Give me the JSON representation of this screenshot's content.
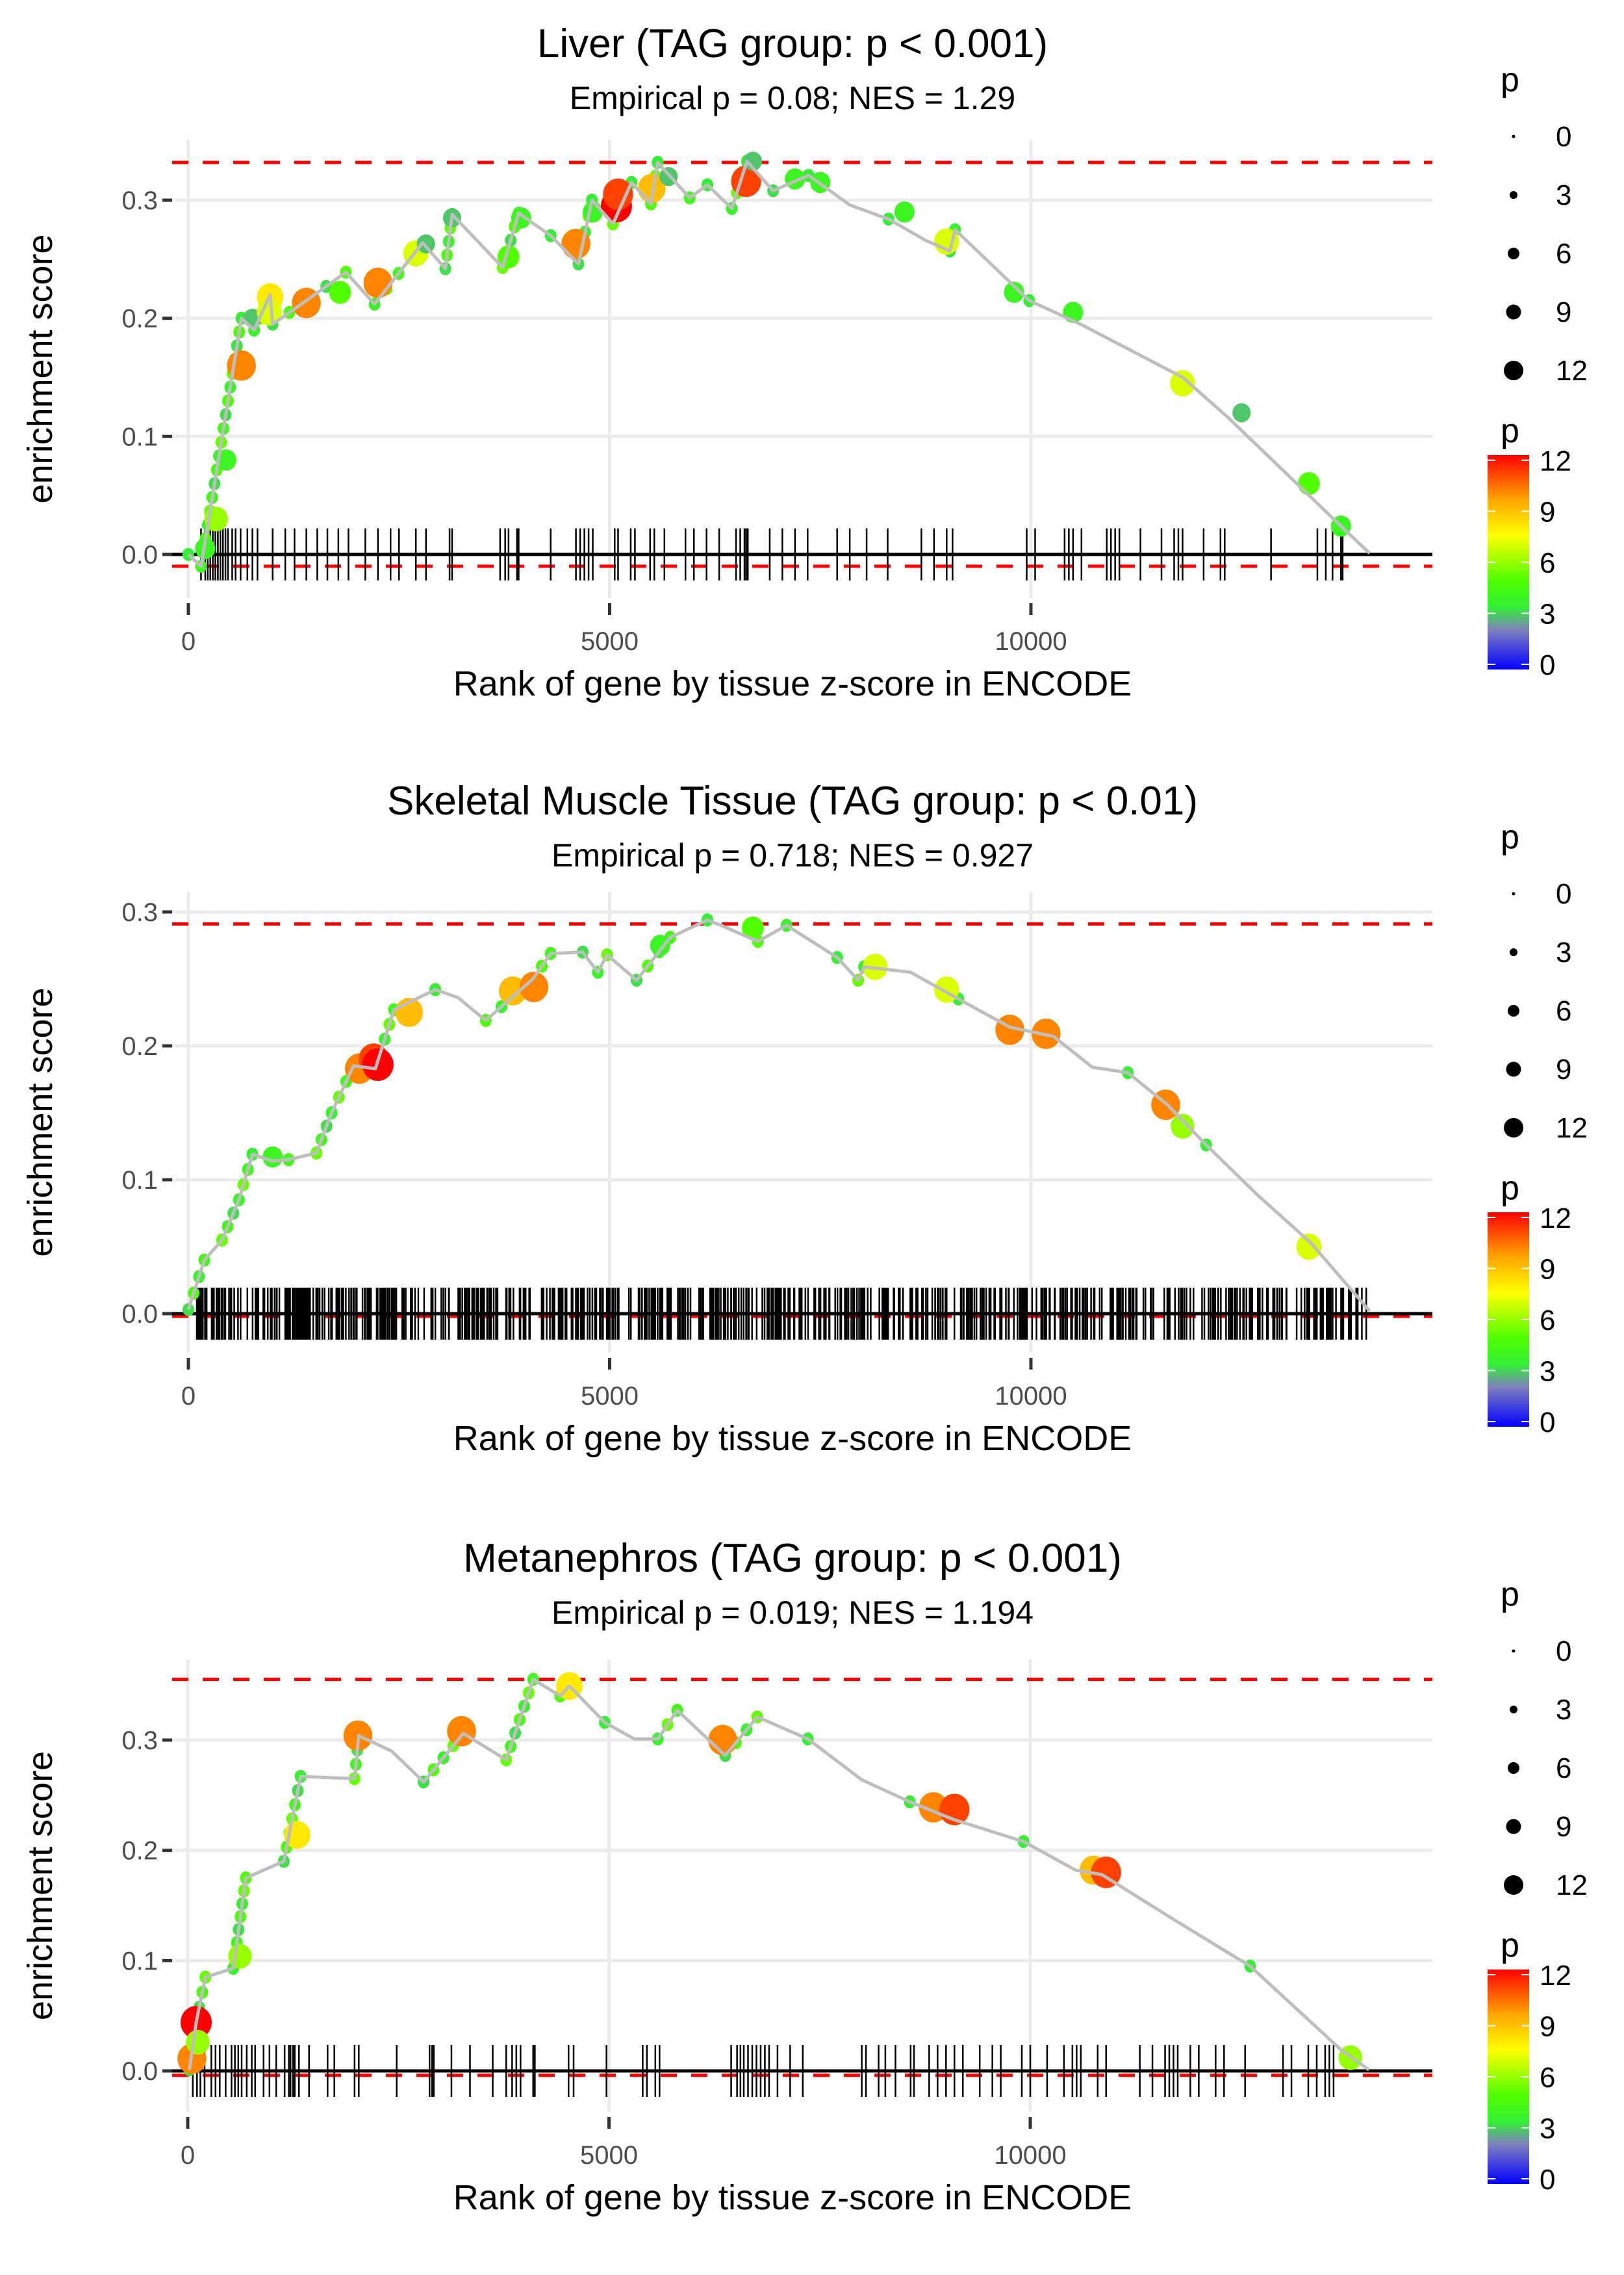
{
  "legend": {
    "size_title": "p",
    "size_breaks": [
      "0",
      "3",
      "6",
      "9",
      "12"
    ],
    "color_title": "p",
    "color_breaks": [
      "12",
      "9",
      "6",
      "3",
      "0"
    ],
    "color_scale": [
      "#0000ff",
      "#7f7fbf",
      "#33ff33",
      "#66ff00",
      "#ffff00",
      "#ffa500",
      "#ff0000"
    ]
  },
  "chart_data": [
    {
      "type": "line",
      "title": "Liver (TAG group: p < 0.001)",
      "subtitle": "Empirical p = 0.08; NES = 1.29",
      "xlabel": "Rank of gene by tissue z-score in ENCODE",
      "ylabel": "enrichment score",
      "xticks": [
        "0",
        "5000",
        "10000"
      ],
      "yticks": [
        "0.0",
        "0.1",
        "0.2",
        "0.3"
      ],
      "xlim": [
        -1000,
        14800
      ],
      "ylim": [
        -0.045,
        0.35
      ],
      "max_es_line": 0.332,
      "min_es_line": -0.01,
      "curve": [
        [
          0,
          0.0
        ],
        [
          150,
          -0.01
        ],
        [
          630,
          0.2
        ],
        [
          780,
          0.19
        ],
        [
          970,
          0.22
        ],
        [
          1000,
          0.195
        ],
        [
          1400,
          0.215
        ],
        [
          1870,
          0.239
        ],
        [
          2210,
          0.212
        ],
        [
          2780,
          0.264
        ],
        [
          3050,
          0.242
        ],
        [
          3130,
          0.288
        ],
        [
          3730,
          0.243
        ],
        [
          3920,
          0.289
        ],
        [
          4300,
          0.27
        ],
        [
          4630,
          0.246
        ],
        [
          4790,
          0.3
        ],
        [
          5040,
          0.28
        ],
        [
          5260,
          0.315
        ],
        [
          5490,
          0.297
        ],
        [
          5570,
          0.332
        ],
        [
          5950,
          0.302
        ],
        [
          6160,
          0.313
        ],
        [
          6450,
          0.293
        ],
        [
          6630,
          0.333
        ],
        [
          6940,
          0.308
        ],
        [
          7360,
          0.321
        ],
        [
          7850,
          0.296
        ],
        [
          8310,
          0.284
        ],
        [
          8750,
          0.266
        ],
        [
          9040,
          0.257
        ],
        [
          9100,
          0.275
        ],
        [
          9980,
          0.215
        ],
        [
          10590,
          0.195
        ],
        [
          11800,
          0.15
        ],
        [
          12340,
          0.116
        ],
        [
          13680,
          0.024
        ],
        [
          14020,
          0.001
        ]
      ],
      "points": [
        [
          200,
          0.005,
          4
        ],
        [
          330,
          0.03,
          6
        ],
        [
          450,
          0.08,
          4
        ],
        [
          630,
          0.16,
          10
        ],
        [
          760,
          0.2,
          3
        ],
        [
          970,
          0.218,
          8
        ],
        [
          960,
          0.205,
          7
        ],
        [
          1400,
          0.213,
          10
        ],
        [
          1800,
          0.222,
          5
        ],
        [
          2250,
          0.23,
          10
        ],
        [
          2700,
          0.255,
          7
        ],
        [
          2820,
          0.263,
          3
        ],
        [
          3130,
          0.285,
          3
        ],
        [
          3800,
          0.252,
          5
        ],
        [
          3950,
          0.285,
          4
        ],
        [
          4600,
          0.263,
          10
        ],
        [
          4800,
          0.29,
          4
        ],
        [
          5080,
          0.295,
          12
        ],
        [
          5100,
          0.305,
          11
        ],
        [
          5500,
          0.31,
          9
        ],
        [
          5700,
          0.32,
          3
        ],
        [
          6620,
          0.316,
          11
        ],
        [
          6700,
          0.333,
          3
        ],
        [
          7200,
          0.318,
          4
        ],
        [
          7500,
          0.315,
          4
        ],
        [
          8500,
          0.29,
          4
        ],
        [
          9000,
          0.265,
          7
        ],
        [
          9800,
          0.222,
          4
        ],
        [
          10500,
          0.205,
          4
        ],
        [
          11800,
          0.145,
          7
        ],
        [
          12500,
          0.12,
          3
        ],
        [
          13300,
          0.06,
          5
        ],
        [
          13680,
          0.024,
          4
        ]
      ],
      "rug": [
        150,
        200,
        230,
        260,
        290,
        320,
        350,
        380,
        410,
        440,
        470,
        520,
        560,
        620,
        700,
        760,
        820,
        1000,
        1150,
        1260,
        1400,
        1530,
        1650,
        1780,
        1900,
        2100,
        2250,
        2400,
        2500,
        2700,
        2820,
        3100,
        3130,
        3700,
        3760,
        3800,
        3900,
        3920,
        4300,
        4600,
        4650,
        4700,
        4750,
        4800,
        5060,
        5100,
        5250,
        5300,
        5480,
        5530,
        5650,
        5900,
        6000,
        6150,
        6300,
        6500,
        6550,
        6600,
        6620,
        6640,
        6900,
        7050,
        7200,
        7350,
        7700,
        7850,
        8050,
        8300,
        8700,
        8850,
        9000,
        9070,
        9950,
        10050,
        10400,
        10450,
        10500,
        10600,
        10900,
        10950,
        11000,
        11050,
        11300,
        11550,
        11700,
        11750,
        11800,
        12050,
        12250,
        12300,
        12850,
        13400,
        13500,
        13580,
        13680,
        13700
      ]
    },
    {
      "type": "line",
      "title": "Skeletal Muscle Tissue (TAG group: p < 0.01)",
      "subtitle": "Empirical p = 0.718; NES = 0.927",
      "xlabel": "Rank of gene by tissue z-score in ENCODE",
      "ylabel": "enrichment score",
      "xticks": [
        "0",
        "5000",
        "10000"
      ],
      "yticks": [
        "0.0",
        "0.1",
        "0.2",
        "0.3"
      ],
      "xlim": [
        -1000,
        14800
      ],
      "ylim": [
        -0.025,
        0.31
      ],
      "max_es_line": 0.291,
      "min_es_line": -0.002,
      "curve": [
        [
          0,
          0.003
        ],
        [
          190,
          0.04
        ],
        [
          400,
          0.055
        ],
        [
          600,
          0.085
        ],
        [
          760,
          0.119
        ],
        [
          1000,
          0.114
        ],
        [
          1190,
          0.115
        ],
        [
          1520,
          0.12
        ],
        [
          1700,
          0.15
        ],
        [
          1960,
          0.185
        ],
        [
          2220,
          0.183
        ],
        [
          2440,
          0.227
        ],
        [
          2930,
          0.242
        ],
        [
          3200,
          0.236
        ],
        [
          3530,
          0.219
        ],
        [
          4090,
          0.25
        ],
        [
          4300,
          0.269
        ],
        [
          4680,
          0.27
        ],
        [
          4860,
          0.255
        ],
        [
          4970,
          0.268
        ],
        [
          5320,
          0.249
        ],
        [
          5720,
          0.281
        ],
        [
          6160,
          0.294
        ],
        [
          6320,
          0.29
        ],
        [
          6760,
          0.278
        ],
        [
          7100,
          0.29
        ],
        [
          7700,
          0.266
        ],
        [
          7950,
          0.249
        ],
        [
          8020,
          0.259
        ],
        [
          8570,
          0.255
        ],
        [
          9140,
          0.235
        ],
        [
          9750,
          0.214
        ],
        [
          10270,
          0.207
        ],
        [
          10730,
          0.184
        ],
        [
          11150,
          0.18
        ],
        [
          11620,
          0.156
        ],
        [
          12080,
          0.126
        ],
        [
          12700,
          0.088
        ],
        [
          13320,
          0.053
        ],
        [
          14020,
          0.002
        ]
      ],
      "points": [
        [
          2030,
          0.183,
          10
        ],
        [
          2200,
          0.19,
          11
        ],
        [
          2250,
          0.186,
          12
        ],
        [
          2620,
          0.225,
          9
        ],
        [
          3850,
          0.241,
          9
        ],
        [
          4100,
          0.244,
          10
        ],
        [
          8150,
          0.259,
          7
        ],
        [
          9000,
          0.242,
          7
        ],
        [
          9750,
          0.212,
          10
        ],
        [
          10180,
          0.209,
          10
        ],
        [
          11600,
          0.156,
          10
        ],
        [
          11800,
          0.14,
          6
        ],
        [
          13300,
          0.05,
          7
        ],
        [
          1000,
          0.117,
          4
        ],
        [
          5600,
          0.275,
          4
        ],
        [
          6700,
          0.288,
          5
        ]
      ],
      "rug_dense": true,
      "rug_count": 620
    },
    {
      "type": "line",
      "title": "Metanephros (TAG group: p < 0.001)",
      "subtitle": "Empirical p = 0.019; NES = 1.194",
      "xlabel": "Rank of gene by tissue z-score in ENCODE",
      "ylabel": "enrichment score",
      "xticks": [
        "0",
        "5000",
        "10000"
      ],
      "yticks": [
        "0.0",
        "0.1",
        "0.2",
        "0.3"
      ],
      "xlim": [
        -1000,
        14800
      ],
      "ylim": [
        -0.04,
        0.37
      ],
      "max_es_line": 0.355,
      "min_es_line": -0.004,
      "curve": [
        [
          20,
          0.001
        ],
        [
          100,
          0.044
        ],
        [
          210,
          0.085
        ],
        [
          540,
          0.093
        ],
        [
          690,
          0.175
        ],
        [
          1140,
          0.19
        ],
        [
          1340,
          0.267
        ],
        [
          1980,
          0.265
        ],
        [
          2030,
          0.304
        ],
        [
          2420,
          0.29
        ],
        [
          2800,
          0.262
        ],
        [
          3270,
          0.306
        ],
        [
          3780,
          0.282
        ],
        [
          4100,
          0.355
        ],
        [
          4420,
          0.34
        ],
        [
          4530,
          0.349
        ],
        [
          4950,
          0.316
        ],
        [
          5300,
          0.301
        ],
        [
          5580,
          0.301
        ],
        [
          5810,
          0.327
        ],
        [
          6380,
          0.286
        ],
        [
          6760,
          0.321
        ],
        [
          7360,
          0.301
        ],
        [
          8000,
          0.264
        ],
        [
          8570,
          0.244
        ],
        [
          9090,
          0.228
        ],
        [
          9920,
          0.208
        ],
        [
          10540,
          0.182
        ],
        [
          10850,
          0.178
        ],
        [
          11730,
          0.136
        ],
        [
          12610,
          0.095
        ],
        [
          13690,
          0.019
        ],
        [
          14020,
          0.001
        ]
      ],
      "points": [
        [
          50,
          0.011,
          10
        ],
        [
          100,
          0.044,
          12
        ],
        [
          120,
          0.026,
          6
        ],
        [
          620,
          0.104,
          6
        ],
        [
          1300,
          0.214,
          8
        ],
        [
          2020,
          0.304,
          10
        ],
        [
          3250,
          0.308,
          10
        ],
        [
          4530,
          0.349,
          8
        ],
        [
          6350,
          0.3,
          10
        ],
        [
          8850,
          0.239,
          10
        ],
        [
          9100,
          0.237,
          11
        ],
        [
          10750,
          0.182,
          9
        ],
        [
          10900,
          0.18,
          11
        ],
        [
          13800,
          0.012,
          6
        ]
      ],
      "rug": [
        60,
        110,
        150,
        200,
        280,
        330,
        380,
        450,
        520,
        560,
        600,
        640,
        700,
        760,
        800,
        900,
        970,
        1050,
        1150,
        1200,
        1220,
        1250,
        1270,
        1320,
        1440,
        1660,
        1740,
        1980,
        2030,
        2480,
        2870,
        2900,
        2920,
        3130,
        3350,
        3620,
        3780,
        3850,
        3900,
        3950,
        4100,
        4120,
        4520,
        4580,
        4970,
        5400,
        5450,
        5550,
        5600,
        6450,
        6520,
        6560,
        6600,
        6650,
        6700,
        6750,
        6800,
        6850,
        6900,
        7000,
        7150,
        7300,
        8000,
        8050,
        8200,
        8280,
        8400,
        8580,
        8620,
        8800,
        8900,
        9000,
        9100,
        9200,
        9400,
        9550,
        9650,
        9900,
        10000,
        10200,
        10400,
        10500,
        10550,
        10600,
        10800,
        10900,
        11300,
        11450,
        11600,
        11650,
        11700,
        11750,
        11900,
        12000,
        12200,
        12300,
        12550,
        13000,
        13100,
        13300,
        13400,
        13500,
        13550,
        13600
      ]
    }
  ]
}
